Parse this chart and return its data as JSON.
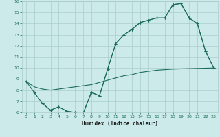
{
  "xlabel": "Humidex (Indice chaleur)",
  "bg_color": "#cceaea",
  "line_color": "#1a6b5a",
  "grid_color": "#aacccc",
  "xlim": [
    -0.5,
    23.5
  ],
  "ylim": [
    6,
    16
  ],
  "xticks": [
    0,
    1,
    2,
    3,
    4,
    5,
    6,
    7,
    8,
    9,
    10,
    11,
    12,
    13,
    14,
    15,
    16,
    17,
    18,
    19,
    20,
    21,
    22,
    23
  ],
  "yticks": [
    6,
    7,
    8,
    9,
    10,
    11,
    12,
    13,
    14,
    15,
    16
  ],
  "line1_x": [
    0,
    1,
    2,
    3,
    4,
    5,
    6,
    7,
    8,
    9,
    10,
    11,
    12,
    13,
    14,
    15,
    16,
    17,
    18,
    19,
    20,
    21,
    22,
    23
  ],
  "line1_y": [
    8.8,
    7.8,
    6.8,
    6.2,
    6.5,
    6.1,
    6.0,
    5.9,
    7.8,
    7.5,
    9.9,
    12.2,
    13.0,
    13.5,
    14.1,
    14.3,
    14.5,
    14.5,
    15.7,
    15.8,
    14.5,
    14.0,
    11.5,
    10.0
  ],
  "line2_x": [
    0,
    1,
    2,
    3,
    4,
    5,
    6,
    7,
    8,
    9,
    10,
    11,
    12,
    13,
    14,
    15,
    16,
    17,
    18,
    19,
    20,
    21,
    22,
    23
  ],
  "line2_y": [
    8.8,
    8.3,
    8.1,
    8.0,
    8.1,
    8.2,
    8.3,
    8.4,
    8.5,
    8.7,
    8.9,
    9.1,
    9.3,
    9.4,
    9.6,
    9.7,
    9.8,
    9.85,
    9.9,
    9.92,
    9.94,
    9.96,
    9.98,
    10.0
  ],
  "line3_x": [
    2,
    3,
    4,
    5,
    6,
    7,
    8,
    9,
    10,
    11,
    12,
    13,
    14,
    15,
    16,
    17,
    18,
    19,
    20,
    21,
    22,
    23
  ],
  "line3_y": [
    6.8,
    6.2,
    6.5,
    6.1,
    6.0,
    5.9,
    7.8,
    7.5,
    9.9,
    12.2,
    13.0,
    13.5,
    14.1,
    14.3,
    14.5,
    14.5,
    15.7,
    15.8,
    14.5,
    14.0,
    11.5,
    10.0
  ]
}
